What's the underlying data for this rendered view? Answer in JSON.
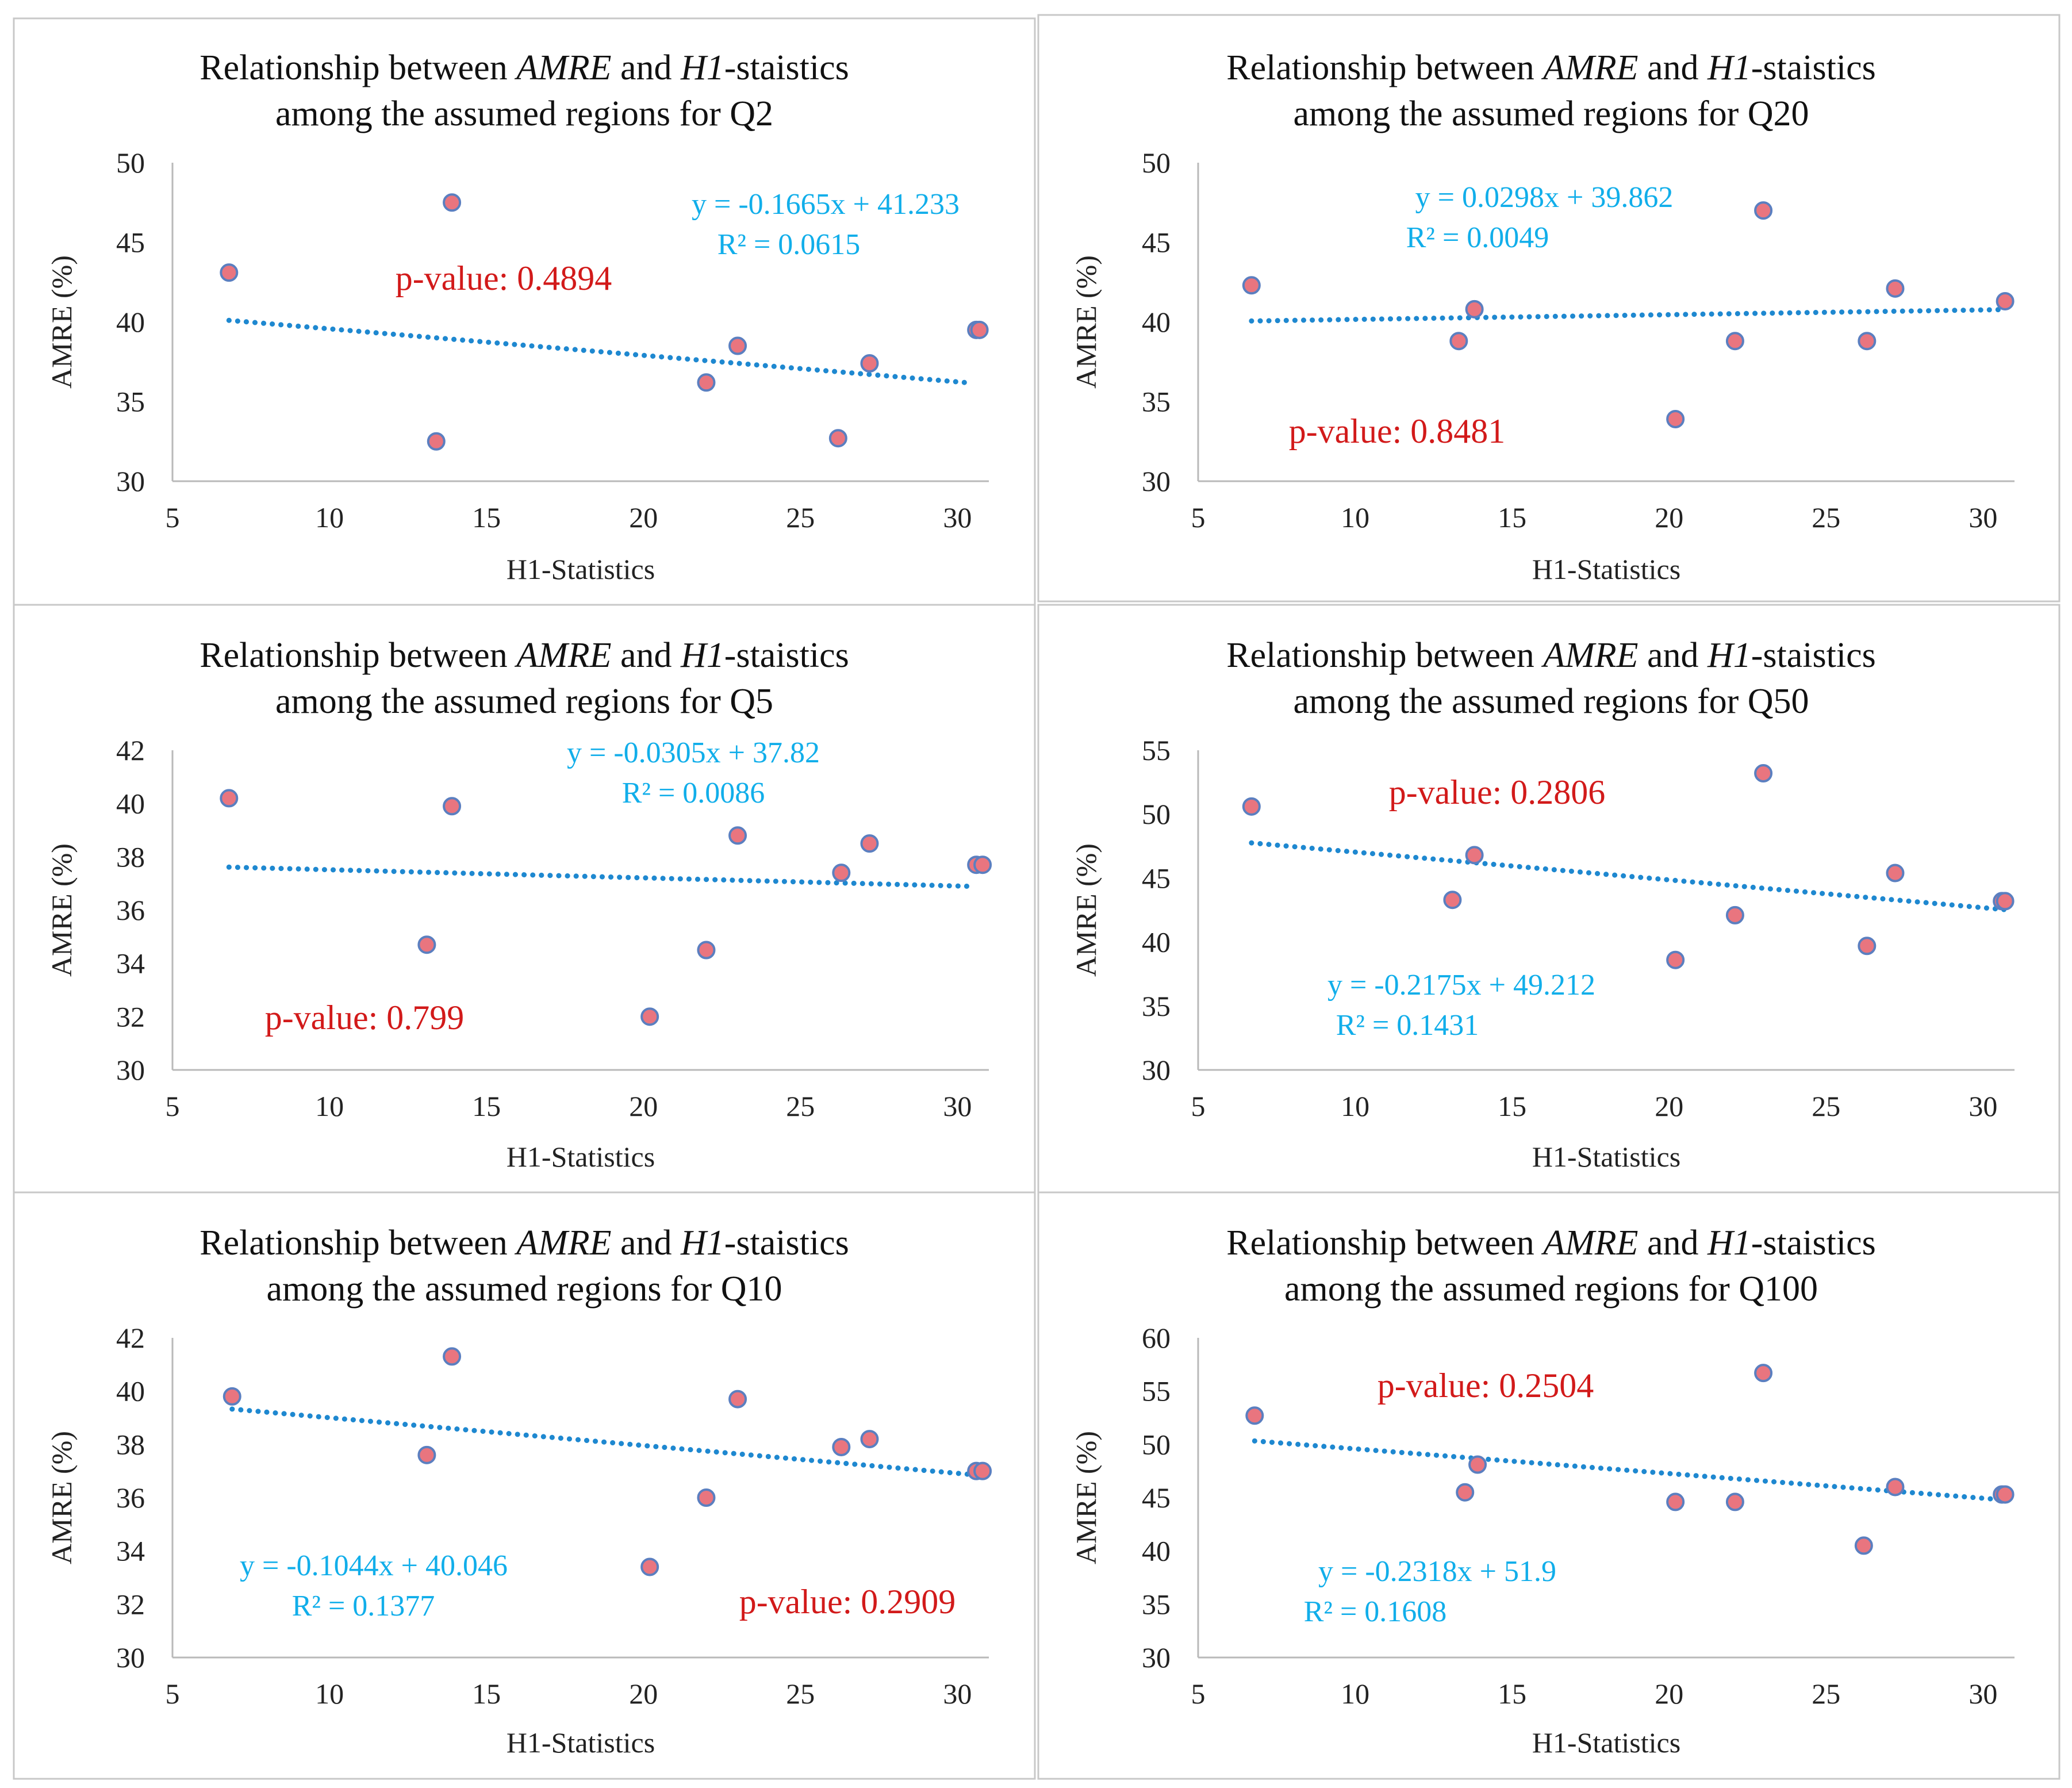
{
  "colors": {
    "point_fill": "#E9757F",
    "point_stroke": "#5B7FC0",
    "trend": "#1E88D0",
    "equation": "#11AEEA",
    "pvalue": "#D21A1A",
    "axis": "#B9B9B9",
    "border": "#C8C8C8"
  },
  "chart_data": [
    {
      "type": "scatter",
      "title_parts": [
        "Relationship  between ",
        "AMRE",
        " and ",
        "H1",
        "-staistics"
      ],
      "title_line2": "among  the assumed regions  for  Q2",
      "xlabel": "H1-Statistics",
      "ylabel": "AMRE (%)",
      "xlim": [
        5,
        31
      ],
      "ylim": [
        30,
        50
      ],
      "xticks": [
        5,
        10,
        15,
        20,
        25,
        30
      ],
      "yticks": [
        30,
        35,
        40,
        45,
        50
      ],
      "points": [
        [
          6.8,
          43.1
        ],
        [
          13.4,
          32.5
        ],
        [
          13.9,
          47.5
        ],
        [
          22.0,
          36.2
        ],
        [
          23.0,
          38.5
        ],
        [
          26.2,
          32.7
        ],
        [
          27.2,
          37.4
        ],
        [
          30.6,
          39.5
        ],
        [
          30.7,
          39.5
        ]
      ],
      "trend": {
        "x": [
          6.8,
          30.3
        ]
      },
      "equation": "y = -0.1665x  + 41.233",
      "r2": "R² = 0.0615",
      "slope": -0.1665,
      "intercept": 41.233,
      "pvalue": "p-value: 0.4894"
    },
    {
      "type": "scatter",
      "title_parts": [
        "Relationship  between ",
        "AMRE",
        " and ",
        "H1",
        "-staistics"
      ],
      "title_line2": "among  the assumed regions  for  Q20",
      "xlabel": "H1-Statistics",
      "ylabel": "AMRE (%)",
      "xlim": [
        5,
        31
      ],
      "ylim": [
        30,
        50
      ],
      "xticks": [
        5,
        10,
        15,
        20,
        25,
        30
      ],
      "yticks": [
        30,
        35,
        40,
        45,
        50
      ],
      "points": [
        [
          6.7,
          42.3
        ],
        [
          13.3,
          38.8
        ],
        [
          13.8,
          40.8
        ],
        [
          20.2,
          33.9
        ],
        [
          22.1,
          38.8
        ],
        [
          23.0,
          47.0
        ],
        [
          26.3,
          38.8
        ],
        [
          27.2,
          42.1
        ],
        [
          30.7,
          41.3
        ]
      ],
      "trend": {
        "x": [
          6.7,
          30.7
        ]
      },
      "equation": "y = 0.0298x  + 39.862",
      "r2": "R² = 0.0049",
      "slope": 0.0298,
      "intercept": 39.862,
      "pvalue": "p-value: 0.8481"
    },
    {
      "type": "scatter",
      "title_parts": [
        "Relationship  between ",
        "AMRE",
        " and ",
        "H1",
        "-staistics"
      ],
      "title_line2": "among  the assumed regions  for  Q5",
      "xlabel": "H1-Statistics",
      "ylabel": "AMRE (%)",
      "xlim": [
        5,
        31
      ],
      "ylim": [
        30,
        42
      ],
      "xticks": [
        5,
        10,
        15,
        20,
        25,
        30
      ],
      "yticks": [
        30,
        32,
        34,
        36,
        38,
        40,
        42
      ],
      "points": [
        [
          6.8,
          40.2
        ],
        [
          13.1,
          34.7
        ],
        [
          13.9,
          39.9
        ],
        [
          20.2,
          32.0
        ],
        [
          22.0,
          34.5
        ],
        [
          23.0,
          38.8
        ],
        [
          26.3,
          37.4
        ],
        [
          27.2,
          38.5
        ],
        [
          30.6,
          37.7
        ],
        [
          30.8,
          37.7
        ]
      ],
      "trend": {
        "x": [
          6.8,
          30.3
        ]
      },
      "equation": "y = -0.0305x  + 37.82",
      "r2": "R² = 0.0086",
      "slope": -0.0305,
      "intercept": 37.82,
      "pvalue": "p-value: 0.799"
    },
    {
      "type": "scatter",
      "title_parts": [
        "Relationship  between ",
        "AMRE",
        " and ",
        "H1",
        "-staistics"
      ],
      "title_line2": "among  the assumed regions  for  Q50",
      "xlabel": "H1-Statistics",
      "ylabel": "AMRE (%)",
      "xlim": [
        5,
        31
      ],
      "ylim": [
        30,
        55
      ],
      "xticks": [
        5,
        10,
        15,
        20,
        25,
        30
      ],
      "yticks": [
        30,
        35,
        40,
        45,
        50,
        55
      ],
      "points": [
        [
          6.7,
          50.6
        ],
        [
          13.1,
          43.3
        ],
        [
          13.8,
          46.8
        ],
        [
          20.2,
          38.6
        ],
        [
          22.1,
          42.1
        ],
        [
          23.0,
          53.2
        ],
        [
          26.3,
          39.7
        ],
        [
          27.2,
          45.4
        ],
        [
          30.6,
          43.2
        ],
        [
          30.7,
          43.2
        ]
      ],
      "trend": {
        "x": [
          6.7,
          30.7
        ]
      },
      "equation": "y = -0.2175x  + 49.212",
      "r2": "R² = 0.1431",
      "slope": -0.2175,
      "intercept": 49.212,
      "pvalue": "p-value: 0.2806"
    },
    {
      "type": "scatter",
      "title_parts": [
        "Relationship  between ",
        "AMRE",
        " and ",
        "H1",
        "-staistics"
      ],
      "title_line2": "among  the assumed regions  for  Q10",
      "xlabel": "H1-Statistics",
      "ylabel": "AMRE (%)",
      "xlim": [
        5,
        31
      ],
      "ylim": [
        30,
        42
      ],
      "xticks": [
        5,
        10,
        15,
        20,
        25,
        30
      ],
      "yticks": [
        30,
        32,
        34,
        36,
        38,
        40,
        42
      ],
      "points": [
        [
          6.9,
          39.8
        ],
        [
          13.1,
          37.6
        ],
        [
          13.9,
          41.3
        ],
        [
          20.2,
          33.4
        ],
        [
          22.0,
          36.0
        ],
        [
          23.0,
          39.7
        ],
        [
          26.3,
          37.9
        ],
        [
          27.2,
          38.2
        ],
        [
          30.6,
          37.0
        ],
        [
          30.8,
          37.0
        ]
      ],
      "trend": {
        "x": [
          6.9,
          30.6
        ]
      },
      "equation": "y = -0.1044x  + 40.046",
      "r2": "R² = 0.1377",
      "slope": -0.1044,
      "intercept": 40.046,
      "pvalue": "p-value: 0.2909"
    },
    {
      "type": "scatter",
      "title_parts": [
        "Relationship  between ",
        "AMRE",
        " and ",
        "H1",
        "-staistics"
      ],
      "title_line2": "among  the assumed regions  for  Q100",
      "xlabel": "H1-Statistics",
      "ylabel": "AMRE (%)",
      "xlim": [
        5,
        31
      ],
      "ylim": [
        30,
        60
      ],
      "xticks": [
        5,
        10,
        15,
        20,
        25,
        30
      ],
      "yticks": [
        30,
        35,
        40,
        45,
        50,
        55,
        60
      ],
      "points": [
        [
          6.8,
          52.7
        ],
        [
          13.5,
          45.5
        ],
        [
          13.9,
          48.1
        ],
        [
          20.2,
          44.6
        ],
        [
          22.1,
          44.6
        ],
        [
          23.0,
          56.7
        ],
        [
          26.2,
          40.5
        ],
        [
          27.2,
          46.0
        ],
        [
          30.6,
          45.3
        ],
        [
          30.7,
          45.3
        ]
      ],
      "trend": {
        "x": [
          6.8,
          30.6
        ]
      },
      "equation": "y = -0.2318x  + 51.9",
      "r2": "R² = 0.1608",
      "slope": -0.2318,
      "intercept": 51.9,
      "pvalue": "p-value: 0.2504"
    }
  ]
}
